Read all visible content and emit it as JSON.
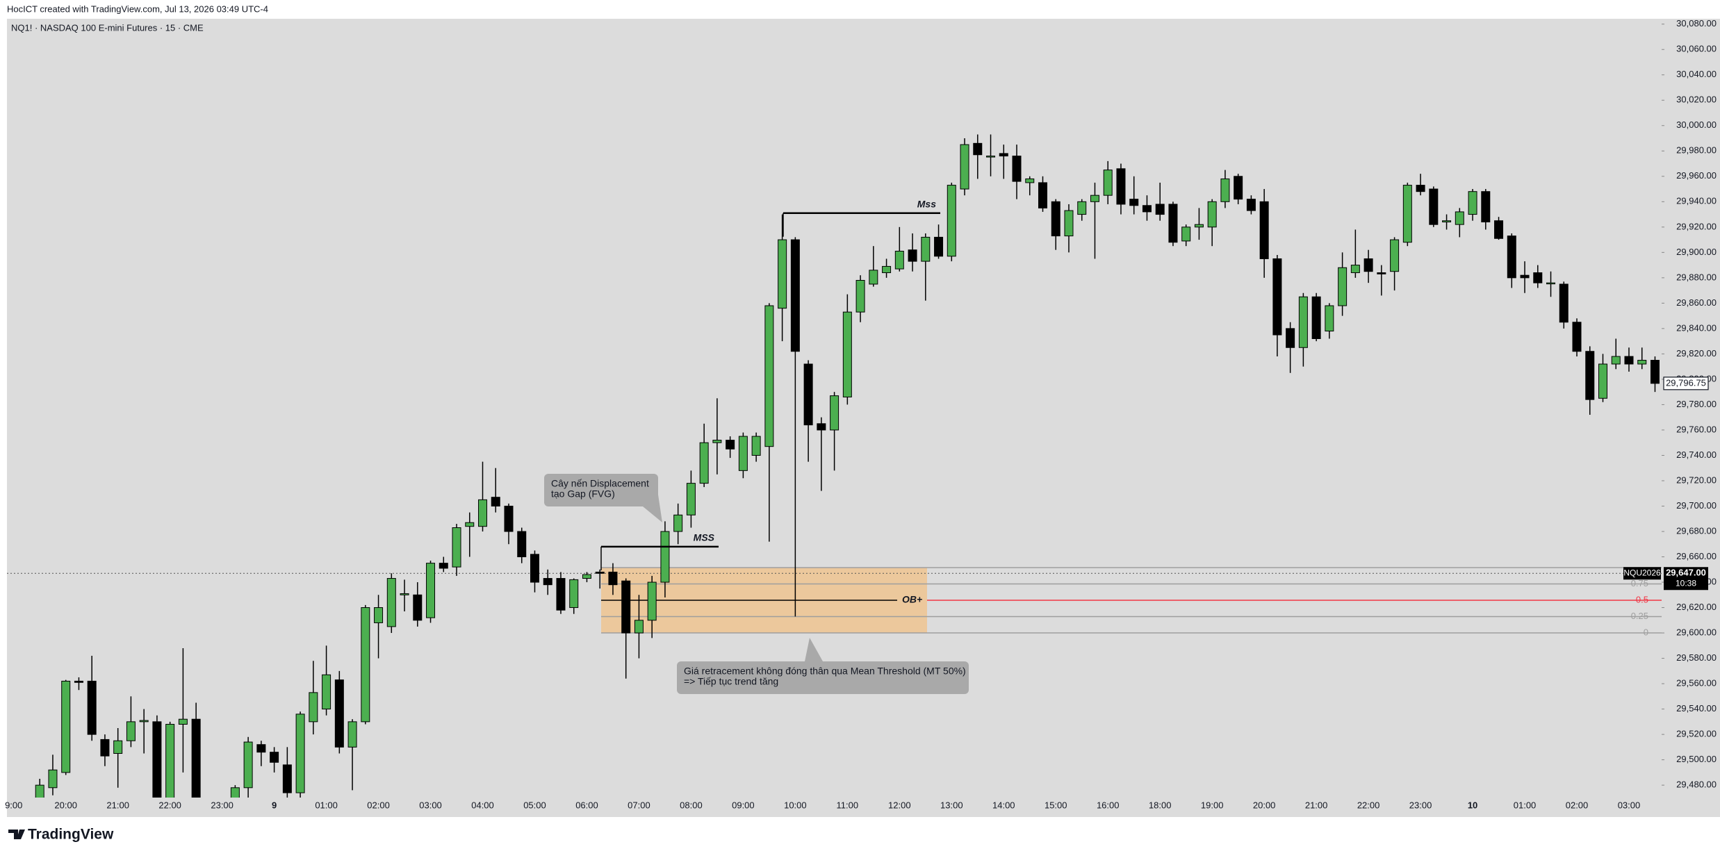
{
  "header": "HocICT created with TradingView.com, Jul 13, 2026 03:49 UTC-4",
  "branding": "TradingView",
  "chart_data": {
    "type": "candlestick",
    "title": "NQ1! · NASDAQ 100 E-mini Futures · 15 · CME",
    "categories": [
      "9:00",
      null,
      null,
      null,
      "20:00",
      null,
      null,
      null,
      "21:00",
      null,
      null,
      null,
      "22:00",
      null,
      null,
      null,
      "23:00",
      null,
      null,
      null,
      "9",
      null,
      null,
      null,
      "01:00",
      null,
      null,
      null,
      "02:00",
      null,
      null,
      null,
      "03:00",
      null,
      null,
      null,
      "04:00",
      null,
      null,
      null,
      "05:00",
      null,
      null,
      null,
      "06:00",
      null,
      null,
      null,
      "07:00",
      null,
      null,
      null,
      "08:00",
      null,
      null,
      null,
      "09:00",
      null,
      null,
      null,
      "10:00",
      null,
      null,
      null,
      "11:00",
      null,
      null,
      null,
      "12:00",
      null,
      null,
      null,
      "13:00",
      null,
      null,
      null,
      "14:00",
      null,
      null,
      null,
      "15:00",
      null,
      null,
      null,
      "16:00",
      null,
      null,
      null,
      "18:00",
      null,
      null,
      null,
      "19:00",
      null,
      null,
      null,
      "20:00",
      null,
      null,
      null,
      "21:00",
      null,
      null,
      null,
      "22:00",
      null,
      null,
      null,
      "23:00",
      null,
      null,
      null,
      "10",
      null,
      null,
      null,
      "01:00",
      null,
      null,
      null,
      "02:00",
      null,
      null,
      null,
      "03:00",
      null,
      null
    ],
    "open": [
      29440,
      29448,
      29462,
      29478,
      29490,
      29562,
      29562,
      29516,
      29505,
      29515,
      29530,
      29530,
      29455,
      29528,
      29532,
      29460,
      29450,
      29460,
      29478,
      29512,
      29506,
      29496,
      29474,
      29530,
      29540,
      29563,
      29510,
      29530,
      29608,
      29605,
      29630,
      29630,
      29612,
      29655,
      29652,
      29684,
      29684,
      29707,
      29700,
      29680,
      29662,
      29643,
      29643,
      29620,
      29643,
      29648,
      29648,
      29641,
      29600,
      29610,
      29640,
      29680,
      29693,
      29718,
      29750,
      29752,
      29728,
      29740,
      29747,
      29856,
      29910,
      29812,
      29765,
      29760,
      29786,
      29853,
      29875,
      29884,
      29887,
      29902,
      29893,
      29912,
      29897,
      29950,
      29986,
      29976,
      29978,
      29976,
      29955,
      29955,
      29940,
      29913,
      29930,
      29940,
      29945,
      29966,
      29942,
      29937,
      29938,
      29938,
      29909,
      29920,
      29920,
      29940,
      29960,
      29942,
      29940,
      29895,
      29840,
      29825,
      29865,
      29838,
      29858,
      29884,
      29895,
      29884,
      29885,
      29908,
      29953,
      29950,
      29924,
      29922,
      29930,
      29948,
      29925,
      29913,
      29882,
      29884,
      29876,
      29875,
      29845,
      29822,
      29785,
      29812,
      29818,
      29812,
      29815
    ],
    "high": [
      29452,
      29462,
      29485,
      29504,
      29563,
      29565,
      29582,
      29520,
      29525,
      29550,
      29540,
      29535,
      29530,
      29588,
      29545,
      29468,
      29462,
      29480,
      29518,
      29515,
      29510,
      29510,
      29538,
      29578,
      29590,
      29570,
      29532,
      29622,
      29630,
      29647,
      29642,
      29640,
      29657,
      29660,
      29686,
      29695,
      29735,
      29730,
      29702,
      29683,
      29665,
      29650,
      29648,
      29643,
      29648,
      29650,
      29655,
      29643,
      29630,
      29645,
      29688,
      29702,
      29728,
      29765,
      29785,
      29755,
      29758,
      29758,
      29860,
      29930,
      29912,
      29815,
      29770,
      29790,
      29867,
      29882,
      29905,
      29895,
      29920,
      29915,
      29915,
      29922,
      29955,
      29990,
      29993,
      29993,
      29985,
      29985,
      29960,
      29960,
      29942,
      29938,
      29942,
      29955,
      29972,
      29970,
      29960,
      29945,
      29955,
      29940,
      29922,
      29935,
      29942,
      29965,
      29962,
      29945,
      29950,
      29898,
      29845,
      29868,
      29868,
      29860,
      29900,
      29918,
      29902,
      29890,
      29912,
      29955,
      29962,
      29952,
      29930,
      29935,
      29950,
      29950,
      29928,
      29915,
      29893,
      29890,
      29885,
      29877,
      29848,
      29826,
      29820,
      29832,
      29825,
      29825,
      29818
    ],
    "low": [
      29430,
      29440,
      29458,
      29472,
      29488,
      29555,
      29515,
      29495,
      29478,
      29510,
      29505,
      29450,
      29450,
      29490,
      29455,
      29440,
      29440,
      29455,
      29470,
      29495,
      29490,
      29460,
      29470,
      29520,
      29535,
      29505,
      29476,
      29528,
      29580,
      29600,
      29617,
      29605,
      29608,
      29648,
      29645,
      29660,
      29680,
      29695,
      29670,
      29655,
      29632,
      29630,
      29615,
      29615,
      29640,
      29635,
      29630,
      29564,
      29580,
      29596,
      29628,
      29670,
      29683,
      29715,
      29725,
      29738,
      29722,
      29735,
      29672,
      29830,
      29613,
      29735,
      29712,
      29728,
      29780,
      29845,
      29873,
      29880,
      29885,
      29885,
      29862,
      29895,
      29893,
      29945,
      29958,
      29960,
      29958,
      29942,
      29945,
      29932,
      29902,
      29900,
      29925,
      29895,
      29938,
      29930,
      29930,
      29925,
      29925,
      29905,
      29905,
      29910,
      29905,
      29935,
      29938,
      29930,
      29880,
      29818,
      29805,
      29810,
      29830,
      29832,
      29850,
      29880,
      29876,
      29866,
      29870,
      29905,
      29945,
      29920,
      29918,
      29912,
      29925,
      29918,
      29910,
      29872,
      29868,
      29872,
      29865,
      29840,
      29818,
      29772,
      29782,
      29808,
      29806,
      29808,
      29790
    ],
    "close": [
      29448,
      29455,
      29480,
      29492,
      29562,
      29561,
      29520,
      29503,
      29515,
      29530,
      29531,
      29455,
      29528,
      29532,
      29460,
      29450,
      29458,
      29478,
      29514,
      29506,
      29498,
      29474,
      29536,
      29553,
      29567,
      29510,
      29530,
      29620,
      29620,
      29643,
      29631,
      29610,
      29655,
      29651,
      29683,
      29687,
      29705,
      29700,
      29680,
      29660,
      29640,
      29638,
      29618,
      29642,
      29646,
      29647,
      29638,
      29600,
      29610,
      29640,
      29680,
      29693,
      29718,
      29750,
      29752,
      29745,
      29755,
      29755,
      29858,
      29910,
      29822,
      29764,
      29760,
      29787,
      29853,
      29878,
      29886,
      29889,
      29901,
      29893,
      29912,
      29897,
      29953,
      29985,
      29977,
      29976,
      29976,
      29956,
      29958,
      29935,
      29913,
      29933,
      29940,
      29945,
      29965,
      29938,
      29937,
      29932,
      29930,
      29908,
      29920,
      29922,
      29940,
      29958,
      29942,
      29933,
      29895,
      29835,
      29825,
      29865,
      29832,
      29858,
      29888,
      29890,
      29885,
      29883,
      29910,
      29953,
      29948,
      29922,
      29925,
      29932,
      29948,
      29924,
      29911,
      29880,
      29880,
      29876,
      29876,
      29845,
      29822,
      29784,
      29812,
      29818,
      29812,
      29815,
      29796.75
    ],
    "up_color": "#4caf50",
    "down_color": "#000000",
    "wick_color": "#000000",
    "ylim": [
      29470,
      30084
    ],
    "yticks": [
      {
        "value": 29480,
        "label": "29,480.00"
      },
      {
        "value": 29500,
        "label": "29,500.00"
      },
      {
        "value": 29520,
        "label": "29,520.00"
      },
      {
        "value": 29540,
        "label": "29,540.00"
      },
      {
        "value": 29560,
        "label": "29,560.00"
      },
      {
        "value": 29580,
        "label": "29,580.00"
      },
      {
        "value": 29600,
        "label": "29,600.00"
      },
      {
        "value": 29620,
        "label": "29,620.00"
      },
      {
        "value": 29640,
        "label": "29,640.00"
      },
      {
        "value": 29660,
        "label": "29,660.00"
      },
      {
        "value": 29680,
        "label": "29,680.00"
      },
      {
        "value": 29700,
        "label": "29,700.00"
      },
      {
        "value": 29720,
        "label": "29,720.00"
      },
      {
        "value": 29740,
        "label": "29,740.00"
      },
      {
        "value": 29760,
        "label": "29,760.00"
      },
      {
        "value": 29780,
        "label": "29,780.00"
      },
      {
        "value": 29800,
        "label": "29,800.00"
      },
      {
        "value": 29820,
        "label": "29,820.00"
      },
      {
        "value": 29840,
        "label": "29,840.00"
      },
      {
        "value": 29860,
        "label": "29,860.00"
      },
      {
        "value": 29880,
        "label": "29,880.00"
      },
      {
        "value": 29900,
        "label": "29,900.00"
      },
      {
        "value": 29920,
        "label": "29,920.00"
      },
      {
        "value": 29940,
        "label": "29,940.00"
      },
      {
        "value": 29960,
        "label": "29,960.00"
      },
      {
        "value": 29980,
        "label": "29,980.00"
      },
      {
        "value": 30000,
        "label": "30,000.00"
      },
      {
        "value": 30020,
        "label": "30,020.00"
      },
      {
        "value": 30040,
        "label": "30,040.00"
      },
      {
        "value": 30060,
        "label": "30,060.00"
      },
      {
        "value": 30080,
        "label": "30,080.00"
      }
    ],
    "grid": false,
    "last_price": {
      "value": 29796.75,
      "label": "29,796.75"
    },
    "current": {
      "symbol": "NQU2026",
      "price": {
        "value": 29647,
        "label": "29,647.00"
      },
      "countdown": "10:38"
    },
    "zone": {
      "top": 29651.5,
      "bottom": 29600,
      "color": "#ecc89c",
      "label": "OB+",
      "levels": [
        0.75,
        0.5,
        0.25,
        0
      ],
      "level_colors": [
        "#9e9e9e",
        "#f23645",
        "#9e9e9e",
        "#9e9e9e"
      ]
    },
    "structure": [
      {
        "label": "MSS",
        "price": 29668
      },
      {
        "label": "Mss",
        "price": 29931
      }
    ],
    "callouts": [
      {
        "lines": [
          "Cây nến Displacement",
          "tạo Gap (FVG)"
        ]
      },
      {
        "lines": [
          "Giá retracement không đóng thân qua Mean Threshold (MT 50%)",
          "=> Tiếp tục trend tăng"
        ]
      }
    ]
  }
}
